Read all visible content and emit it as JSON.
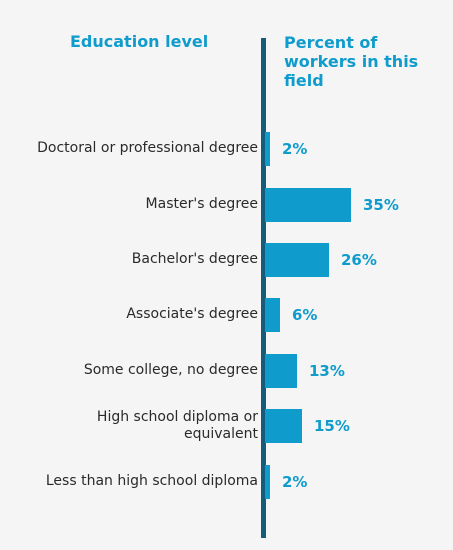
{
  "header": {
    "left": "Education level",
    "right": "Percent of workers in this field"
  },
  "colors": {
    "bar": "#0f9ccc",
    "axis": "#175b7a",
    "header_text": "#0f9ccc",
    "label_text": "#2a2a2a",
    "background": "#f5f5f5"
  },
  "chart_data": {
    "type": "bar",
    "orientation": "horizontal",
    "categories": [
      "Doctoral or professional degree",
      "Master's degree",
      "Bachelor's degree",
      "Associate's degree",
      "Some college, no degree",
      "High school diploma or equivalent",
      "Less than high school diploma"
    ],
    "values": [
      2,
      35,
      26,
      6,
      13,
      15,
      2
    ],
    "value_labels": [
      "2%",
      "35%",
      "26%",
      "6%",
      "13%",
      "15%",
      "2%"
    ],
    "unit": "%",
    "xlim": [
      0,
      35
    ],
    "grid": false,
    "legend": "none"
  }
}
